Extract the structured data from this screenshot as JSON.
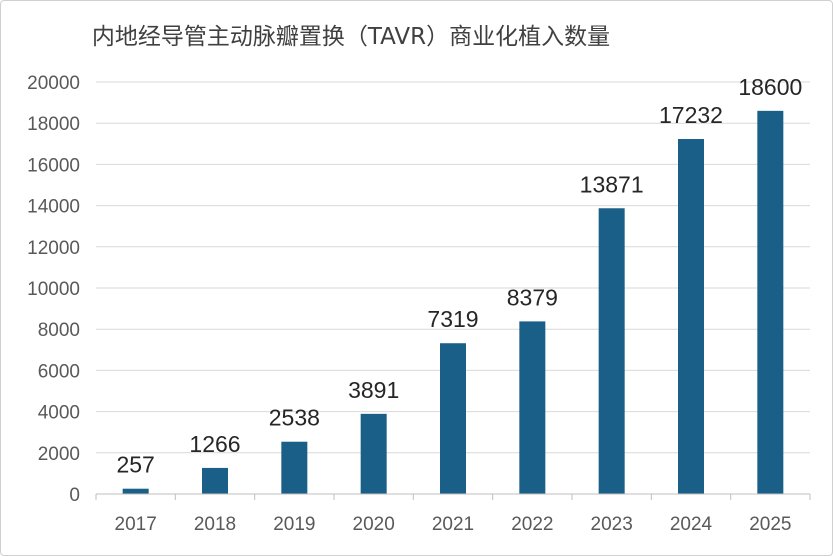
{
  "chart_data": {
    "type": "bar",
    "title": "内地经导管主动脉瓣置换（TAVR）商业化植入数量",
    "xlabel": "",
    "ylabel": "",
    "categories": [
      "2017",
      "2018",
      "2019",
      "2020",
      "2021",
      "2022",
      "2023",
      "2024",
      "2025"
    ],
    "values": [
      257,
      1266,
      2538,
      3891,
      7319,
      8379,
      13871,
      17232,
      18600
    ],
    "ylim": [
      0,
      20000
    ],
    "yticks": [
      0,
      2000,
      4000,
      6000,
      8000,
      10000,
      12000,
      14000,
      16000,
      18000,
      20000
    ],
    "grid": true,
    "legend": "none",
    "colors": {
      "bar": "#1a5f87",
      "grid": "#d9d9d9",
      "axis": "#bfbfbf"
    }
  }
}
